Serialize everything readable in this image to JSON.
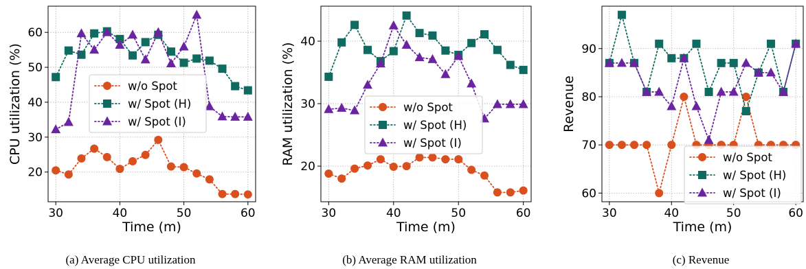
{
  "colors": {
    "wo_spot": "#d9501e",
    "spot_h": "#0f6b5f",
    "spot_i": "#6a24a0"
  },
  "chart_data": [
    {
      "type": "line",
      "id": "cpu",
      "caption": "(a) Average CPU utilization",
      "xlabel": "Time (m)",
      "ylabel": "CPU utilization (%)",
      "xlim": [
        28.8,
        61.2
      ],
      "ylim": [
        11.5,
        67.5
      ],
      "xticks": [
        30,
        40,
        50,
        60
      ],
      "yticks": [
        20,
        30,
        40,
        50,
        60
      ],
      "grid": true,
      "legend": {
        "position": "center-right"
      },
      "x": [
        30,
        32,
        34,
        36,
        38,
        40,
        42,
        44,
        46,
        48,
        50,
        52,
        54,
        56,
        58,
        60
      ],
      "series": [
        {
          "name": "w/o Spot",
          "marker": "circle",
          "color": "#d9501e",
          "values": [
            20.5,
            19.3,
            23.9,
            26.7,
            24.3,
            20.9,
            23.1,
            24.9,
            29.2,
            21.6,
            21.4,
            19.6,
            17.9,
            13.7,
            13.7,
            13.6
          ]
        },
        {
          "name": "w/ Spot (H)",
          "marker": "square",
          "color": "#0f6b5f",
          "values": [
            47.2,
            54.8,
            53.6,
            59.7,
            60.3,
            58.1,
            53.4,
            57.2,
            59.3,
            54.5,
            51.3,
            52.5,
            51.9,
            49.6,
            44.6,
            43.4
          ]
        },
        {
          "name": "w/ Spot (I)",
          "marker": "triangle",
          "color": "#6a24a0",
          "values": [
            32.2,
            34.3,
            59.7,
            55.0,
            60.0,
            56.4,
            59.3,
            52.2,
            60.0,
            51.1,
            55.9,
            65.0,
            38.8,
            35.9,
            35.8,
            35.8
          ]
        }
      ]
    },
    {
      "type": "line",
      "id": "ram",
      "caption": "(b) Average RAM utilization",
      "xlabel": "Time (m)",
      "ylabel": "RAM utilization (%)",
      "xlim": [
        28.8,
        61.2
      ],
      "ylim": [
        14.3,
        45.6
      ],
      "xticks": [
        30,
        40,
        50,
        60
      ],
      "yticks": [
        20,
        30,
        40
      ],
      "grid": true,
      "legend": {
        "position": "center"
      },
      "x": [
        30,
        32,
        34,
        36,
        38,
        40,
        42,
        44,
        46,
        48,
        50,
        52,
        54,
        56,
        58,
        60
      ],
      "series": [
        {
          "name": "w/o Spot",
          "marker": "circle",
          "color": "#d9501e",
          "values": [
            18.8,
            18.0,
            19.6,
            20.1,
            21.1,
            19.9,
            20.0,
            21.4,
            21.4,
            21.1,
            21.1,
            19.4,
            18.5,
            15.8,
            15.8,
            16.1
          ]
        },
        {
          "name": "w/ Spot (H)",
          "marker": "square",
          "color": "#0f6b5f",
          "values": [
            34.3,
            39.8,
            42.6,
            38.6,
            36.8,
            38.4,
            44.1,
            41.3,
            40.9,
            38.5,
            37.8,
            39.7,
            41.1,
            38.6,
            36.2,
            35.4
          ]
        },
        {
          "name": "w/ Spot (I)",
          "marker": "triangle",
          "color": "#6a24a0",
          "values": [
            29.1,
            29.3,
            28.9,
            33.0,
            36.4,
            42.5,
            39.4,
            37.4,
            37.1,
            34.7,
            37.6,
            33.2,
            27.6,
            29.9,
            29.9,
            29.9
          ]
        }
      ]
    },
    {
      "type": "line",
      "id": "revenue",
      "caption": "(c) Revenue",
      "xlabel": "Time (m)",
      "ylabel": "Revenue",
      "xlim": [
        28.8,
        61.2
      ],
      "ylim": [
        58.2,
        98.8
      ],
      "xticks": [
        30,
        40,
        50,
        60
      ],
      "yticks": [
        60,
        70,
        80,
        90
      ],
      "grid": true,
      "legend": {
        "position": "lower-right"
      },
      "x": [
        30,
        32,
        34,
        36,
        38,
        40,
        42,
        44,
        46,
        48,
        50,
        52,
        54,
        56,
        58,
        60
      ],
      "series": [
        {
          "name": "w/o Spot",
          "marker": "circle",
          "color": "#d9501e",
          "values": [
            70,
            70,
            70,
            70,
            60,
            70,
            80,
            70,
            70,
            70,
            70,
            80,
            70,
            70,
            70,
            70
          ]
        },
        {
          "name": "w/ Spot (H)",
          "marker": "square",
          "color": "#0f6b5f",
          "values": [
            87,
            97,
            87,
            81,
            91,
            88,
            88,
            91,
            81,
            87,
            87,
            77,
            85,
            91,
            81,
            91
          ]
        },
        {
          "name": "w/ Spot (I)",
          "marker": "triangle",
          "color": "#6a24a0",
          "values": [
            87,
            87,
            87,
            81,
            81,
            78,
            88,
            78,
            71,
            81,
            81,
            87,
            85,
            85,
            81,
            91
          ]
        }
      ]
    }
  ]
}
